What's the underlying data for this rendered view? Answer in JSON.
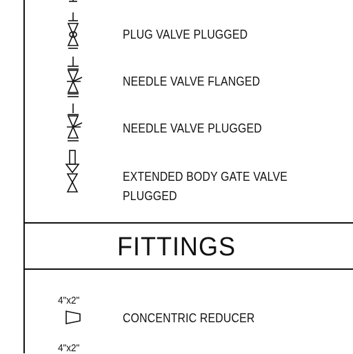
{
  "valves": [
    {
      "id": "plug-valve-plugged",
      "label": "PLUG VALVE PLUGGED"
    },
    {
      "id": "needle-valve-flanged",
      "label": "NEEDLE VALVE FLANGED"
    },
    {
      "id": "needle-valve-plugged",
      "label": "NEEDLE VALVE PLUGGED"
    },
    {
      "id": "extended-body-gate-valve-plugged",
      "label_line1": "EXTENDED BODY GATE VALVE",
      "label_line2": "PLUGGED"
    }
  ],
  "fittings": {
    "title": "FITTINGS",
    "items": [
      {
        "id": "concentric-reducer",
        "size": "4\"x2\"",
        "label": "CONCENTRIC REDUCER"
      },
      {
        "id": "next-fitting",
        "size": "4\"x2\""
      }
    ]
  }
}
